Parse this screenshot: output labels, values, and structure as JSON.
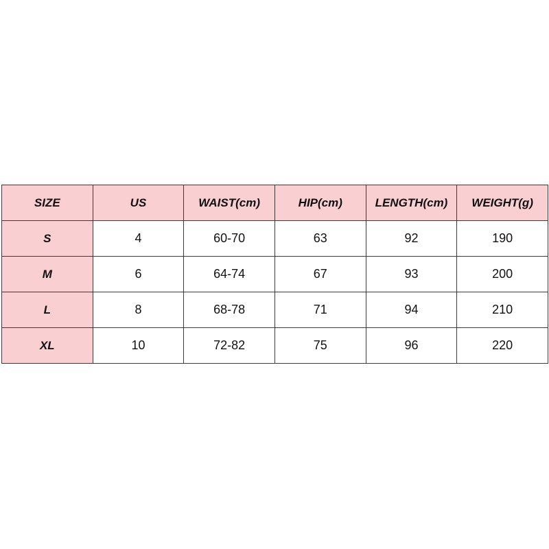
{
  "table": {
    "header": [
      "SIZE",
      "US",
      "WAIST(cm)",
      "HIP(cm)",
      "LENGTH(cm)",
      "WEIGHT(g)"
    ],
    "rows": [
      [
        "S",
        4,
        "60-70",
        63,
        92,
        190
      ],
      [
        "M",
        6,
        "64-74",
        67,
        93,
        200
      ],
      [
        "L",
        8,
        "68-78",
        71,
        94,
        210
      ],
      [
        "XL",
        10,
        "72-82",
        75,
        96,
        220
      ]
    ]
  }
}
